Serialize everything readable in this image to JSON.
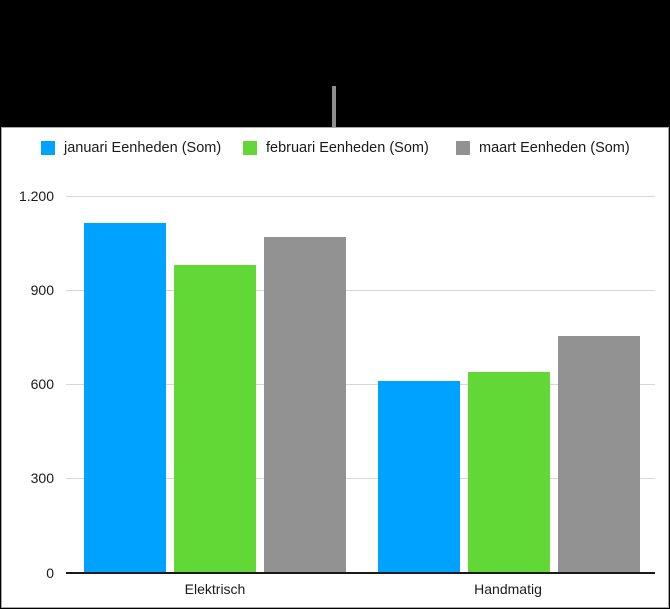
{
  "chart_data": {
    "type": "bar",
    "title": "",
    "xlabel": "",
    "ylabel": "",
    "categories": [
      "Elektrisch",
      "Handmatig"
    ],
    "series": [
      {
        "name": "januari Eenheden (Som)",
        "color": "#00a2ff",
        "values": [
          1115,
          610
        ]
      },
      {
        "name": "februari Eenheden (Som)",
        "color": "#61d836",
        "values": [
          980,
          640
        ]
      },
      {
        "name": "maart Eenheden (Som)",
        "color": "#929292",
        "values": [
          1070,
          755
        ]
      }
    ],
    "ylim": [
      0,
      1200
    ],
    "yticks": [
      0,
      300,
      600,
      900,
      1200
    ],
    "ytick_labels": [
      "0",
      "300",
      "600",
      "900",
      "1.200"
    ],
    "grid": true,
    "legend_position": "top"
  },
  "legend": {
    "items": [
      {
        "label": "januari Eenheden (Som)",
        "color": "#00a2ff"
      },
      {
        "label": "februari Eenheden (Som)",
        "color": "#61d836"
      },
      {
        "label": "maart Eenheden (Som)",
        "color": "#929292"
      }
    ]
  },
  "axis": {
    "y_labels": [
      "1.200",
      "900",
      "600",
      "300",
      "0"
    ],
    "x_labels": [
      "Elektrisch",
      "Handmatig"
    ]
  }
}
